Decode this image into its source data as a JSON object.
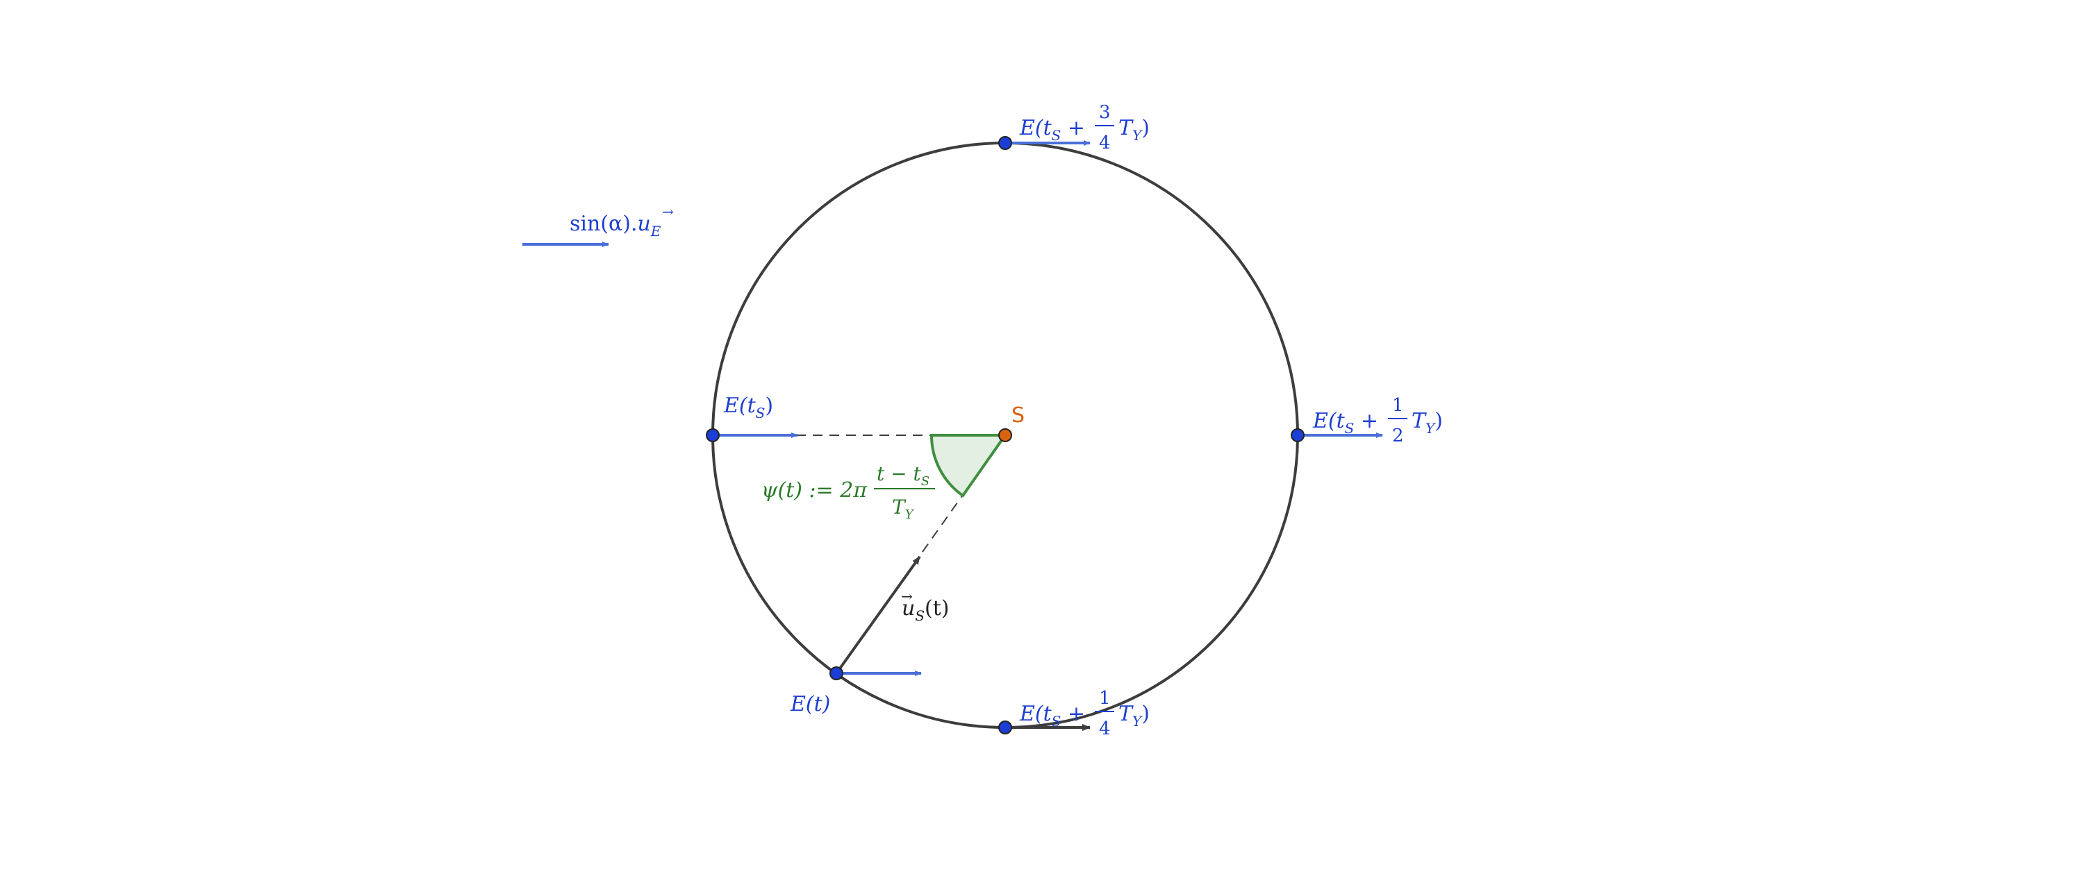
{
  "colors": {
    "blue": "#1f3fcf",
    "arrow_blue": "#4a6fd8",
    "dark": "#3d3d3d",
    "green": "#2a7a2a",
    "green_fill": "#e3efe3",
    "orange": "#d9620f"
  },
  "legend": {
    "vector_label_func": "sin",
    "vector_label_arg": "(α).",
    "vector_label_u": "u",
    "vector_label_sub": "E"
  },
  "points": {
    "sun": "S",
    "e_ts": {
      "E": "E(t",
      "sub": "S",
      "close": ")"
    },
    "e_t": {
      "text": "E(t)"
    },
    "e_half": {
      "pre": "E(t",
      "sub": "S",
      "plus": " + ",
      "num": "1",
      "den": "2",
      "T": "T",
      "Tsub": "Y",
      "close": ")"
    },
    "e_quarter": {
      "pre": "E(t",
      "sub": "S",
      "plus": " + ",
      "num": "1",
      "den": "4",
      "T": "T",
      "Tsub": "Y",
      "close": ")"
    },
    "e_three_quarter": {
      "pre": "E(t",
      "sub": "S",
      "plus": " + ",
      "num": "3",
      "den": "4",
      "T": "T",
      "Tsub": "Y",
      "close": ")"
    }
  },
  "vectors": {
    "u_s": {
      "u": "u",
      "sub": "S",
      "arg": "(t)"
    }
  },
  "angle": {
    "lhs": "ψ(t) := 2π",
    "num_t": "t − t",
    "num_sub": "S",
    "den_T": "T",
    "den_sub": "Y"
  }
}
